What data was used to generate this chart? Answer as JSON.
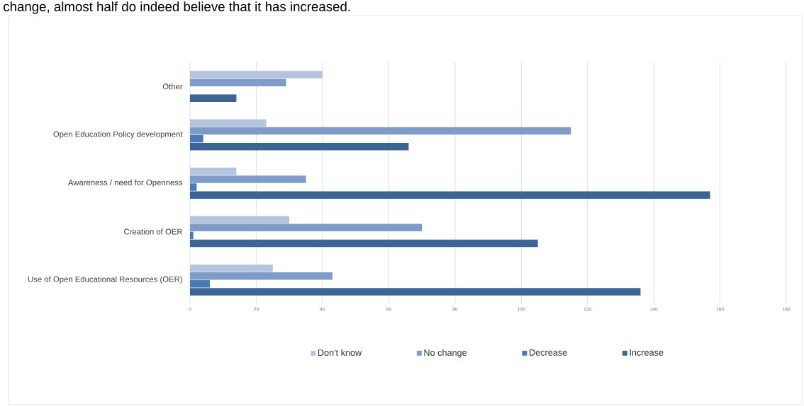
{
  "chart_data": {
    "type": "bar",
    "orientation": "horizontal",
    "categories": [
      "Other",
      "Open Education Policy development",
      "Awareness / need for Openness",
      "Creation of OER",
      "Use of Open Educational Resources (OER)"
    ],
    "series": [
      {
        "name": "Don't know",
        "color": "#b4c3de",
        "values": [
          40,
          23,
          14,
          30,
          25
        ]
      },
      {
        "name": "No change",
        "color": "#7f9cc9",
        "values": [
          29,
          115,
          35,
          70,
          43
        ]
      },
      {
        "name": "Decrease",
        "color": "#4a7ab4",
        "values": [
          0,
          4,
          2,
          1,
          6
        ]
      },
      {
        "name": "Increase",
        "color": "#3c6494",
        "values": [
          14,
          66,
          157,
          105,
          136
        ]
      }
    ],
    "xlim": [
      0,
      180
    ],
    "xticks": [
      0,
      20,
      40,
      60,
      80,
      100,
      120,
      140,
      160,
      180
    ],
    "grid": "x",
    "legend": "bottom",
    "annotations": [
      "change, almost half do indeed believe that it has increased."
    ]
  }
}
